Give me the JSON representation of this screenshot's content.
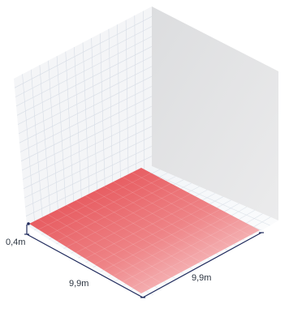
{
  "dimensions": {
    "height_label": "0,4m",
    "width_label": "9,9m",
    "depth_label": "9,9m"
  },
  "colors": {
    "wall_grid": "#d7dde6",
    "back_wall": "#f4f5f7",
    "right_wall": "#e3e4e6",
    "floor_white": "#fbfcfd",
    "area_strong": "#e2393f",
    "area_light": "#fbe2e3",
    "dimension_line": "#1f2a5c"
  }
}
